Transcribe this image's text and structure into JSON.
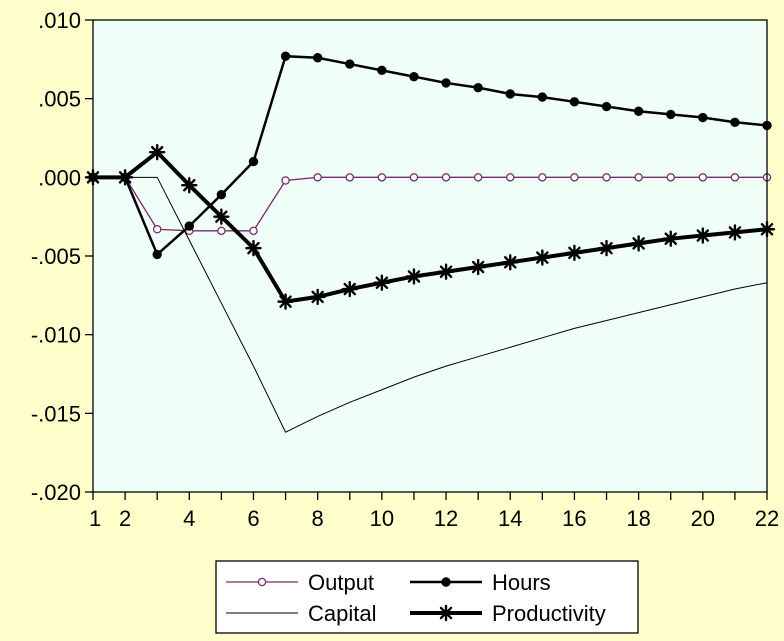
{
  "chart_data": {
    "type": "line",
    "title": "",
    "xlabel": "",
    "ylabel": "",
    "x": [
      1,
      2,
      3,
      4,
      5,
      6,
      7,
      8,
      9,
      10,
      11,
      12,
      13,
      14,
      15,
      16,
      17,
      18,
      19,
      20,
      21,
      22
    ],
    "xlim": [
      1,
      22
    ],
    "ylim": [
      -0.02,
      0.01
    ],
    "x_ticks": [
      1,
      2,
      3,
      4,
      5,
      6,
      7,
      8,
      9,
      10,
      11,
      12,
      13,
      14,
      15,
      16,
      17,
      18,
      19,
      20,
      21,
      22
    ],
    "x_tick_labels": [
      "2",
      "4",
      "6",
      "8",
      "10",
      "12",
      "14",
      "16",
      "18",
      "20",
      "22"
    ],
    "x_tick_label_values": [
      2,
      4,
      6,
      8,
      10,
      12,
      14,
      16,
      18,
      20,
      22
    ],
    "y_ticks": [
      0.01,
      0.005,
      0.0,
      -0.005,
      -0.01,
      -0.015,
      -0.02
    ],
    "y_tick_labels": [
      ".010",
      ".005",
      ".000",
      "-.005",
      "-.010",
      "-.015",
      "-.020"
    ],
    "grid": false,
    "legend_position": "bottom-center",
    "plot_background": "#f0fff8",
    "page_background": "#ffffcc",
    "series": [
      {
        "name": "Output",
        "color": "#7a2a6e",
        "marker": "open-circle",
        "line_weight": "thin",
        "values": [
          0.0,
          0.0,
          -0.0033,
          -0.0034,
          -0.0034,
          -0.0034,
          -0.0002,
          0.0,
          0.0,
          0.0,
          0.0,
          0.0,
          0.0,
          0.0,
          0.0,
          0.0,
          0.0,
          0.0,
          0.0,
          0.0,
          0.0,
          0.0
        ]
      },
      {
        "name": "Hours",
        "color": "#000000",
        "marker": "filled-circle",
        "line_weight": "medium",
        "values": [
          0.0,
          0.0,
          -0.0049,
          -0.0031,
          -0.0011,
          0.001,
          0.0077,
          0.0076,
          0.0072,
          0.0068,
          0.0064,
          0.006,
          0.0057,
          0.0053,
          0.0051,
          0.0048,
          0.0045,
          0.0042,
          0.004,
          0.0038,
          0.0035,
          0.0033
        ]
      },
      {
        "name": "Capital",
        "color": "#000000",
        "marker": "none",
        "line_weight": "hairline",
        "values": [
          0.0,
          0.0,
          0.0,
          -0.004,
          -0.008,
          -0.012,
          -0.0162,
          -0.0152,
          -0.0143,
          -0.0135,
          -0.0127,
          -0.012,
          -0.0114,
          -0.0108,
          -0.0102,
          -0.0096,
          -0.0091,
          -0.0086,
          -0.0081,
          -0.0076,
          -0.0071,
          -0.0067
        ]
      },
      {
        "name": "Productivity",
        "color": "#000000",
        "marker": "asterisk",
        "line_weight": "thick",
        "values": [
          0.0,
          0.0,
          0.0016,
          -0.0005,
          -0.0025,
          -0.0045,
          -0.0079,
          -0.0076,
          -0.0071,
          -0.0067,
          -0.0063,
          -0.006,
          -0.0057,
          -0.0054,
          -0.0051,
          -0.0048,
          -0.0045,
          -0.0042,
          -0.0039,
          -0.0037,
          -0.0035,
          -0.0033
        ]
      }
    ]
  }
}
